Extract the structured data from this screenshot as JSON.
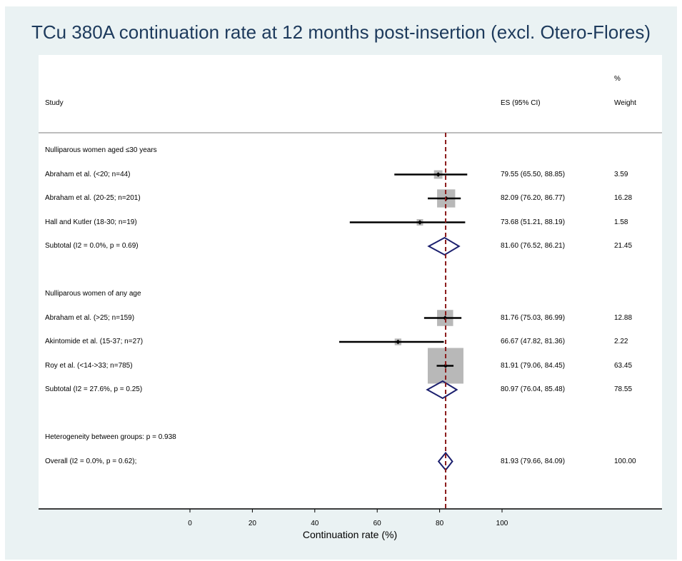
{
  "title": "TCu 380A continuation rate at 12 months post-insertion (excl. Otero-Flores)",
  "headers": {
    "study": "Study",
    "es": "ES (95% CI)",
    "weight_line1": "%",
    "weight_line2": "Weight"
  },
  "colors": {
    "panel_bg": "#eaf2f3",
    "box": "#b8b8b8",
    "diamond": "#1b1f6e",
    "ref_line": "#8b1a1a",
    "title": "#1d3a5c"
  },
  "chart_data": {
    "type": "forest",
    "xlabel": "Continuation rate (%)",
    "xlim": [
      0,
      100
    ],
    "xticks": [
      "0",
      "20",
      "40",
      "60",
      "80",
      "100"
    ],
    "overall_reference": 81.93,
    "rows": [
      {
        "kind": "group",
        "label": "Nulliparous women aged ≤30 years"
      },
      {
        "kind": "study",
        "label": "Abraham et al. (<20; n=44)",
        "es": 79.55,
        "lo": 65.5,
        "hi": 88.85,
        "es_text": "79.55 (65.50, 88.85)",
        "weight": 3.59,
        "weight_text": "3.59"
      },
      {
        "kind": "study",
        "label": "Abraham et al. (20-25; n=201)",
        "es": 82.09,
        "lo": 76.2,
        "hi": 86.77,
        "es_text": "82.09 (76.20, 86.77)",
        "weight": 16.28,
        "weight_text": "16.28"
      },
      {
        "kind": "study",
        "label": "Hall and Kutler (18-30; n=19)",
        "es": 73.68,
        "lo": 51.21,
        "hi": 88.19,
        "es_text": "73.68 (51.21, 88.19)",
        "weight": 1.58,
        "weight_text": "1.58"
      },
      {
        "kind": "subtotal",
        "label": "Subtotal  (I2 = 0.0%, p = 0.69)",
        "es": 81.6,
        "lo": 76.52,
        "hi": 86.21,
        "es_text": "81.60 (76.52, 86.21)",
        "weight_text": "21.45"
      },
      {
        "kind": "blank"
      },
      {
        "kind": "group",
        "label": "Nulliparous women of any age"
      },
      {
        "kind": "study",
        "label": "Abraham et al. (>25; n=159)",
        "es": 81.76,
        "lo": 75.03,
        "hi": 86.99,
        "es_text": "81.76 (75.03, 86.99)",
        "weight": 12.88,
        "weight_text": "12.88"
      },
      {
        "kind": "study",
        "label": "Akintomide et al. (15-37; n=27)",
        "es": 66.67,
        "lo": 47.82,
        "hi": 81.36,
        "es_text": "66.67 (47.82, 81.36)",
        "weight": 2.22,
        "weight_text": "2.22"
      },
      {
        "kind": "study",
        "label": "Roy et al. (<14->33; n=785)",
        "es": 81.91,
        "lo": 79.06,
        "hi": 84.45,
        "es_text": "81.91 (79.06, 84.45)",
        "weight": 63.45,
        "weight_text": "63.45"
      },
      {
        "kind": "subtotal",
        "label": "Subtotal  (I2 = 27.6%, p = 0.25)",
        "es": 80.97,
        "lo": 76.04,
        "hi": 85.48,
        "es_text": "80.97 (76.04, 85.48)",
        "weight_text": "78.55"
      },
      {
        "kind": "blank"
      },
      {
        "kind": "group",
        "label": "Heterogeneity between groups: p = 0.938"
      },
      {
        "kind": "overall",
        "label": "Overall  (I2 = 0.0%, p = 0.62);",
        "es": 81.93,
        "lo": 79.66,
        "hi": 84.09,
        "es_text": "81.93 (79.66, 84.09)",
        "weight_text": "100.00"
      }
    ]
  }
}
